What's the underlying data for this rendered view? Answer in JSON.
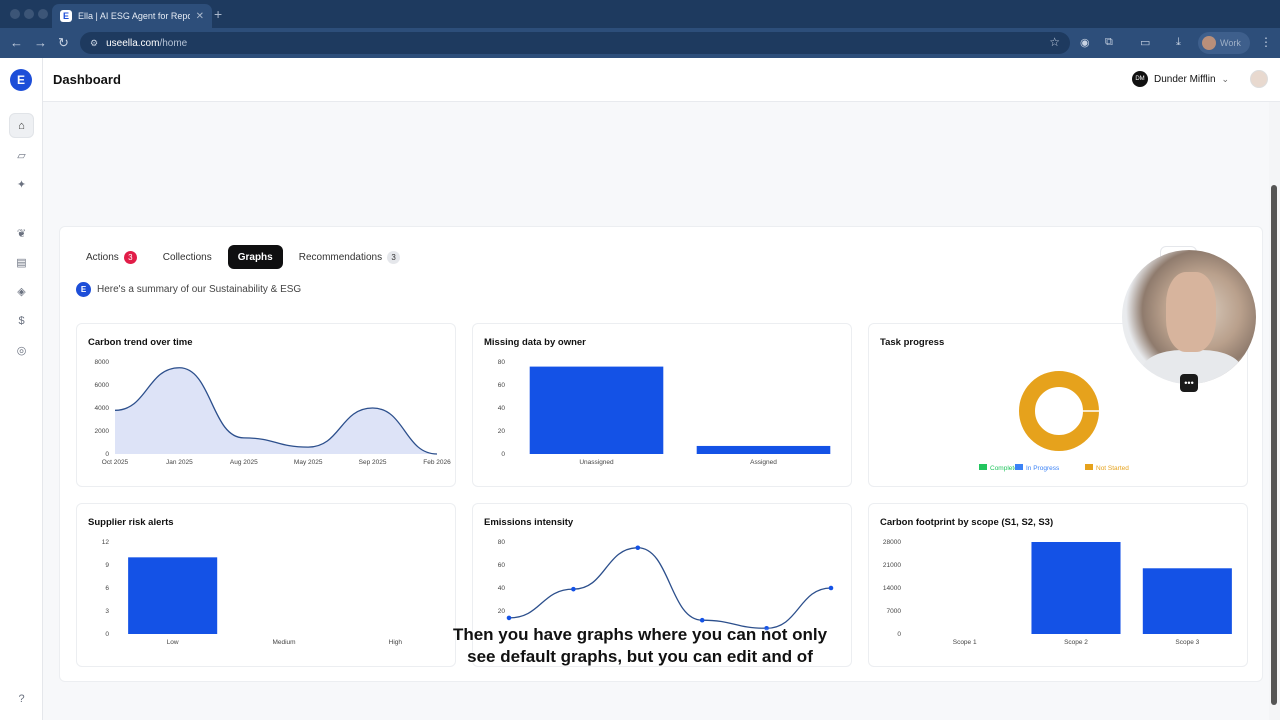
{
  "browser": {
    "tab_title": "Ella | AI ESG Agent for Reporting",
    "tab_favicon": "E",
    "new_tab": "+",
    "url_host": "useella.com",
    "url_path": "/home",
    "profile_label": "Work"
  },
  "app": {
    "logo": "E",
    "page_title": "Dashboard",
    "org_name": "Dunder Mifflin",
    "org_logo_text": "DM"
  },
  "tabs": [
    {
      "label": "Actions",
      "badge": "3"
    },
    {
      "label": "Collections"
    },
    {
      "label": "Graphs"
    },
    {
      "label": "Recommendations",
      "badge": "3"
    }
  ],
  "summary": {
    "icon": "E",
    "text": "Here's a summary of our Sustainability & ESG"
  },
  "data_button": "data",
  "caption": {
    "line1": "Then you have graphs where you can not only",
    "line2": "see default graphs, but you can edit and of"
  },
  "colors": {
    "accent": "#1452e6",
    "area_fill": "#dde3f7",
    "line": "#2c4f8c",
    "completed": "#22c55e",
    "in_progress": "#3b82f6",
    "not_started": "#e6a21c"
  },
  "chart_data": [
    {
      "type": "area",
      "title": "Carbon trend over time",
      "categories": [
        "Oct 2025",
        "Jan 2025",
        "Aug 2025",
        "May 2025",
        "Sep 2025",
        "Feb 2026"
      ],
      "values": [
        3800,
        7500,
        1400,
        600,
        4000,
        0
      ],
      "yticks": [
        "8000",
        "6000",
        "4000",
        "2000",
        "0"
      ],
      "ylim": [
        0,
        8000
      ]
    },
    {
      "type": "bar",
      "title": "Missing data by owner",
      "categories": [
        "Unassigned",
        "Assigned"
      ],
      "values": [
        76,
        7
      ],
      "yticks": [
        "80",
        "60",
        "40",
        "20",
        "0"
      ],
      "ylim": [
        0,
        80
      ]
    },
    {
      "type": "pie",
      "title": "Task progress",
      "labels": [
        "Completed",
        "In Progress",
        "Not Started"
      ],
      "values": [
        0,
        0,
        100
      ]
    },
    {
      "type": "bar",
      "title": "Supplier risk alerts",
      "categories": [
        "Low",
        "Medium",
        "High"
      ],
      "values": [
        10,
        0,
        0
      ],
      "yticks": [
        "12",
        "9",
        "6",
        "3",
        "0"
      ],
      "ylim": [
        0,
        12
      ]
    },
    {
      "type": "line",
      "title": "Emissions intensity",
      "values": [
        14,
        39,
        75,
        12,
        5,
        40
      ],
      "yticks": [
        "80",
        "60",
        "40",
        "20"
      ],
      "ylim": [
        0,
        80
      ]
    },
    {
      "type": "bar",
      "title": "Carbon footprint by scope (S1, S2, S3)",
      "categories": [
        "Scope 1",
        "Scope 2",
        "Scope 3"
      ],
      "values": [
        0,
        28000,
        20000
      ],
      "yticks": [
        "28000",
        "21000",
        "14000",
        "7000",
        "0"
      ],
      "ylim": [
        0,
        28000
      ]
    }
  ]
}
